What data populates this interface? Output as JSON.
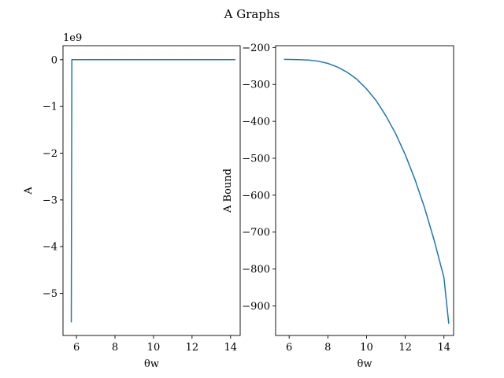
{
  "title": "A Graphs",
  "colors": {
    "line": "#1f77b4",
    "axes": "#000000",
    "background": "#ffffff"
  },
  "chart_data": [
    {
      "type": "line",
      "title": "",
      "xlabel": "θw",
      "ylabel": "A",
      "y_offset_text": "1e9",
      "xlim": [
        5.3,
        14.5
      ],
      "ylim": [
        -5.9,
        0.3
      ],
      "grid": false,
      "x_ticks": [
        6,
        8,
        10,
        12,
        14
      ],
      "x_tick_labels": [
        "6",
        "8",
        "10",
        "12",
        "14"
      ],
      "y_ticks": [
        0,
        -1,
        -2,
        -3,
        -4,
        -5
      ],
      "y_tick_labels": [
        "0",
        "−1",
        "−2",
        "−3",
        "−4",
        "−5"
      ],
      "series": [
        {
          "x": [
            5.73,
            5.76,
            5.82,
            6.0,
            7.0,
            8.0,
            9.0,
            10.0,
            11.0,
            12.0,
            13.0,
            14.25
          ],
          "y": [
            -5.62,
            0.0,
            0.0,
            0.0,
            0.0,
            0.0,
            0.0,
            0.0,
            0.0,
            0.0,
            0.0,
            0.0
          ]
        }
      ]
    },
    {
      "type": "line",
      "title": "",
      "xlabel": "θw",
      "ylabel": "A Bound",
      "xlim": [
        5.3,
        14.5
      ],
      "ylim": [
        -980,
        -195
      ],
      "grid": false,
      "x_ticks": [
        6,
        8,
        10,
        12,
        14
      ],
      "x_tick_labels": [
        "6",
        "8",
        "10",
        "12",
        "14"
      ],
      "y_ticks": [
        -200,
        -300,
        -400,
        -500,
        -600,
        -700,
        -800,
        -900
      ],
      "y_tick_labels": [
        "−200",
        "−300",
        "−400",
        "−500",
        "−600",
        "−700",
        "−800",
        "−900"
      ],
      "series": [
        {
          "x": [
            5.73,
            6.5,
            7.0,
            7.5,
            8.0,
            8.5,
            9.0,
            9.5,
            10.0,
            10.5,
            11.0,
            11.5,
            12.0,
            12.5,
            13.0,
            13.5,
            14.0,
            14.25
          ],
          "y": [
            -232,
            -233,
            -234,
            -237,
            -243,
            -253,
            -267,
            -286,
            -312,
            -344,
            -385,
            -433,
            -490,
            -557,
            -634,
            -723,
            -823,
            -948
          ]
        }
      ]
    }
  ]
}
